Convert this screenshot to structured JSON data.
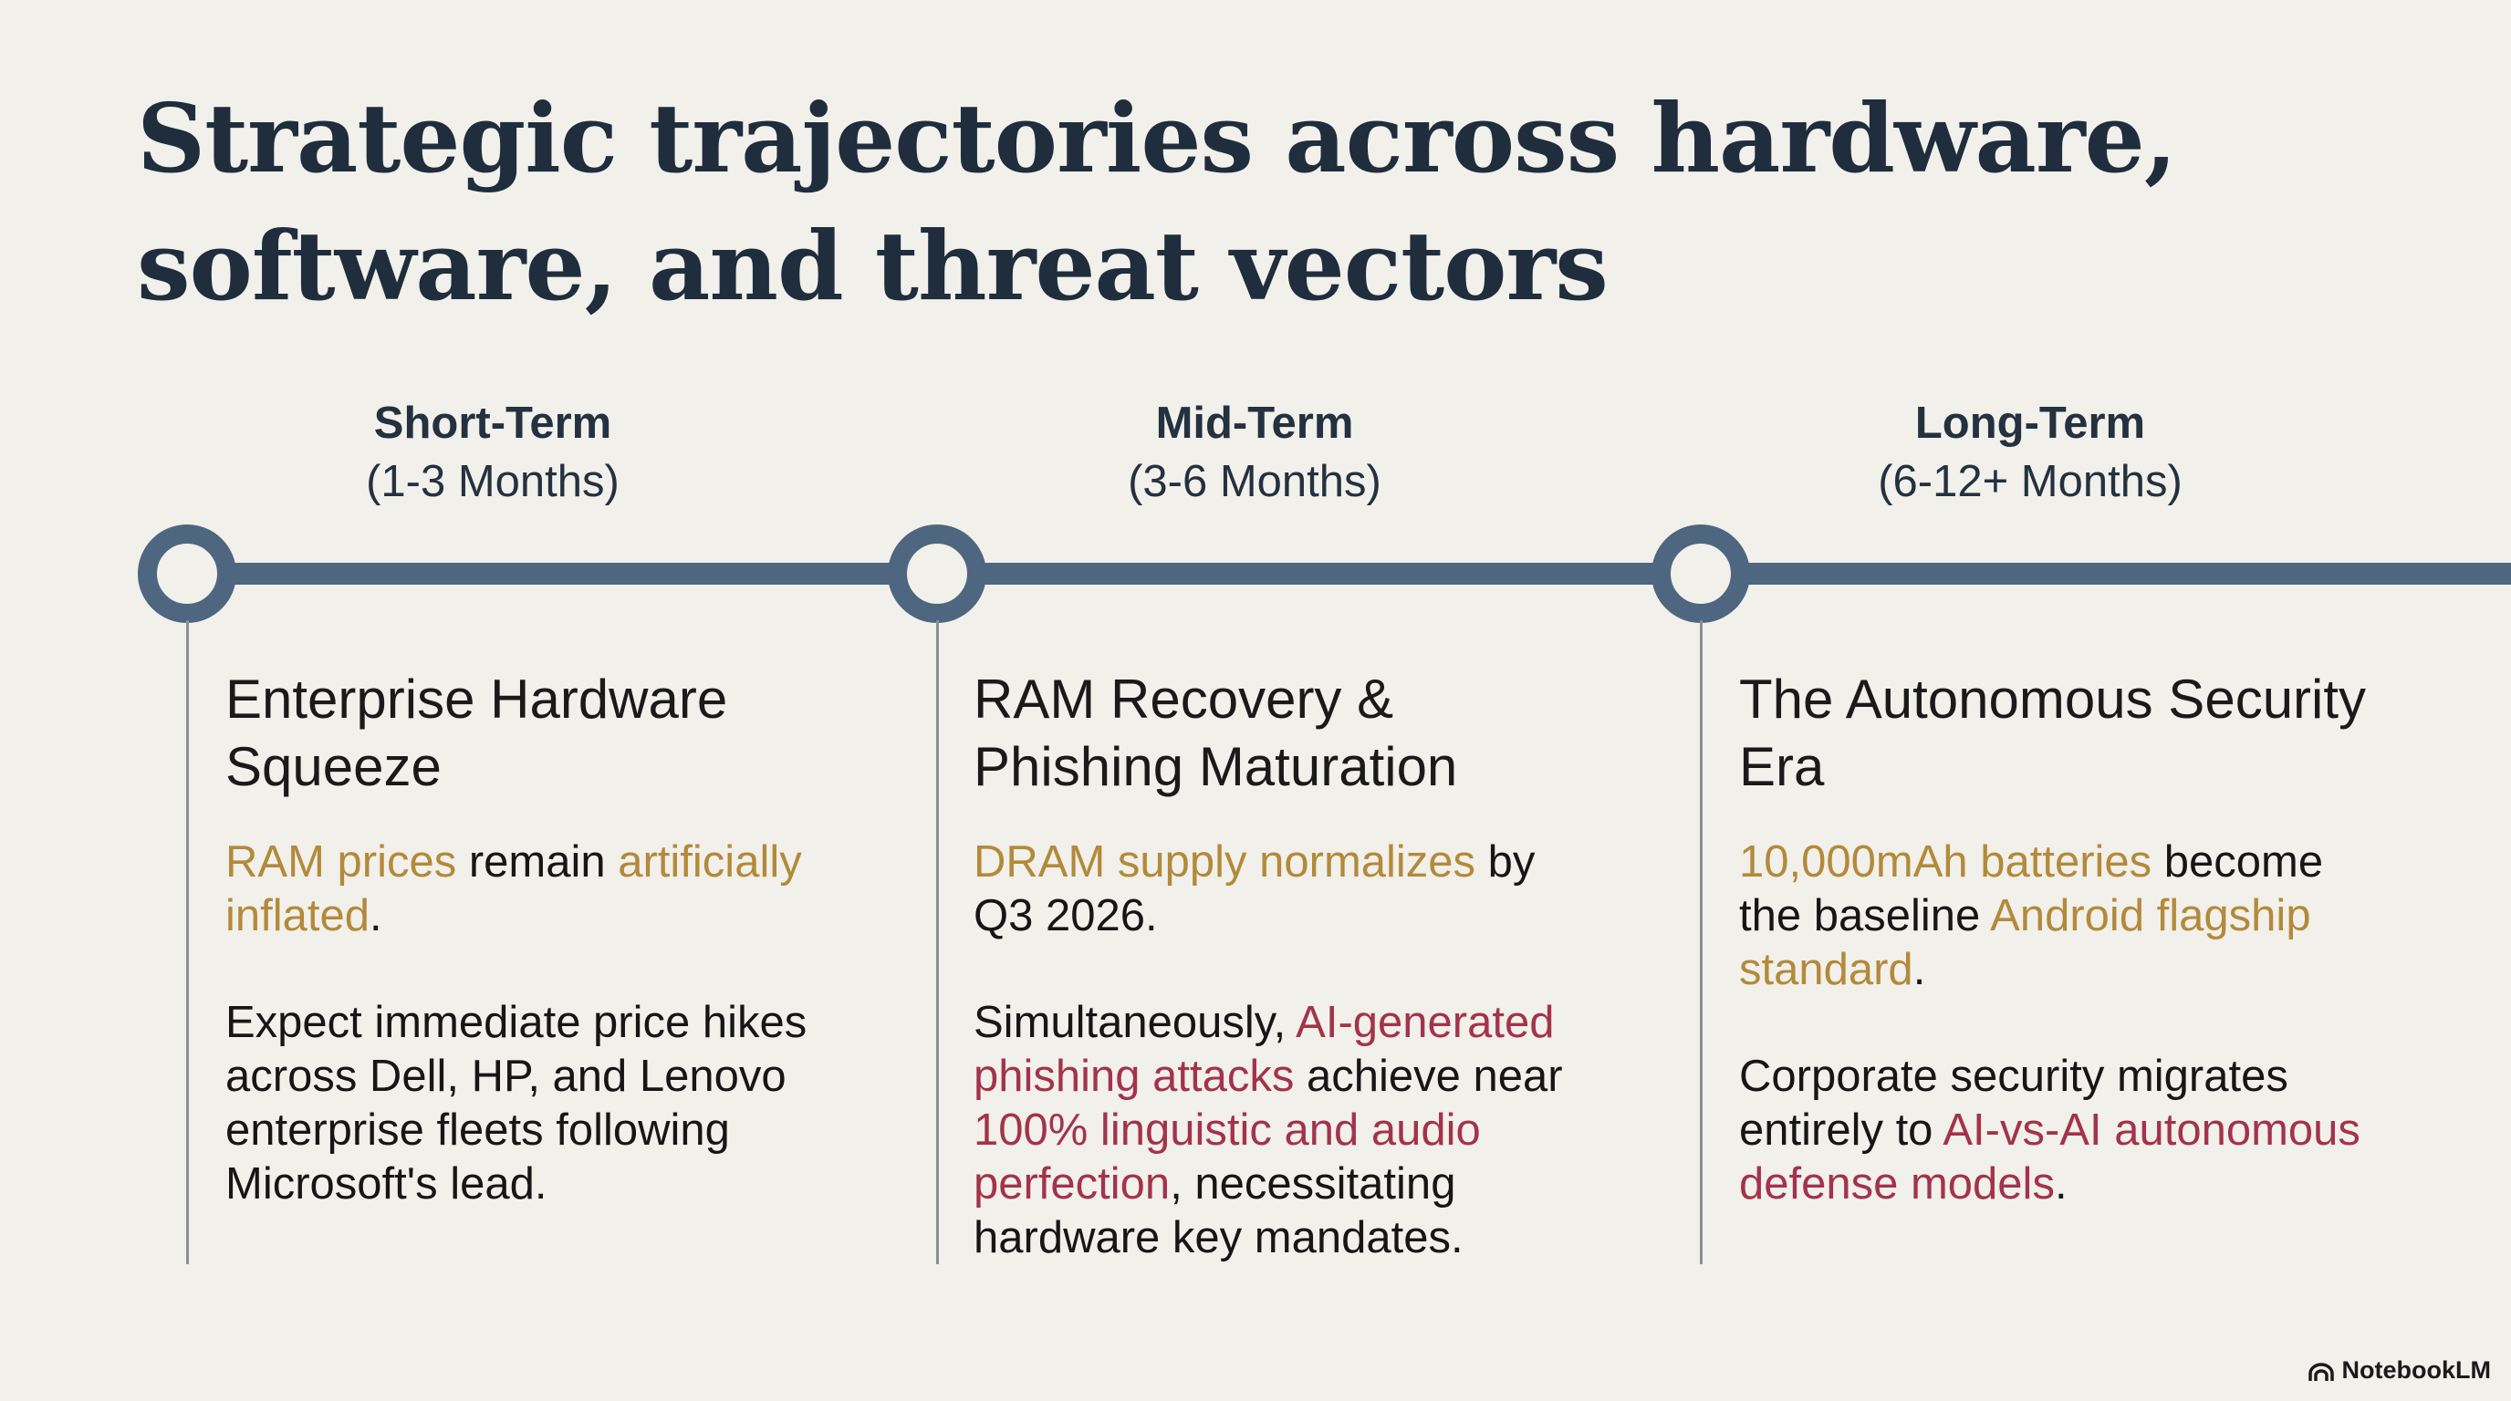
{
  "title": "Strategic trajectories across hardware, software, and threat vectors",
  "colors": {
    "accent_gold": "#b38a3a",
    "accent_red": "#a3334b",
    "timeline": "#4f6680",
    "background": "#f1f0eb"
  },
  "phases": [
    {
      "name": "Short-Term",
      "range": "(1-3 Months)",
      "heading": "Enterprise Hardware Squeeze",
      "paragraphs": [
        [
          {
            "t": "RAM prices",
            "s": "gold"
          },
          {
            "t": " remain ",
            "s": "plain"
          },
          {
            "t": "artificially inflated",
            "s": "gold"
          },
          {
            "t": ".",
            "s": "plain"
          }
        ],
        [
          {
            "t": "Expect immediate price hikes across Dell, HP, and Lenovo enterprise fleets following Microsoft's lead.",
            "s": "plain"
          }
        ]
      ]
    },
    {
      "name": "Mid-Term",
      "range": "(3-6 Months)",
      "heading": "RAM Recovery & Phishing Maturation",
      "paragraphs": [
        [
          {
            "t": "DRAM supply normalizes",
            "s": "gold"
          },
          {
            "t": " by Q3 2026.",
            "s": "plain"
          }
        ],
        [
          {
            "t": "Simultaneously, ",
            "s": "plain"
          },
          {
            "t": "AI-generated phishing attacks",
            "s": "red"
          },
          {
            "t": " achieve near ",
            "s": "plain"
          },
          {
            "t": "100% linguistic and audio perfection",
            "s": "red"
          },
          {
            "t": ", necessitating hardware key mandates.",
            "s": "plain"
          }
        ]
      ]
    },
    {
      "name": "Long-Term",
      "range": "(6-12+ Months)",
      "heading": "The Autonomous Security Era",
      "paragraphs": [
        [
          {
            "t": "10,000mAh batteries",
            "s": "gold"
          },
          {
            "t": " become the baseline ",
            "s": "plain"
          },
          {
            "t": "Android flagship standard",
            "s": "gold"
          },
          {
            "t": ".",
            "s": "plain"
          }
        ],
        [
          {
            "t": "Corporate security migrates entirely to ",
            "s": "plain"
          },
          {
            "t": "AI-vs-AI autonomous defense models",
            "s": "red"
          },
          {
            "t": ".",
            "s": "plain"
          }
        ]
      ]
    }
  ],
  "brand": {
    "label": "NotebookLM",
    "icon": "notebooklm-logo-icon"
  }
}
